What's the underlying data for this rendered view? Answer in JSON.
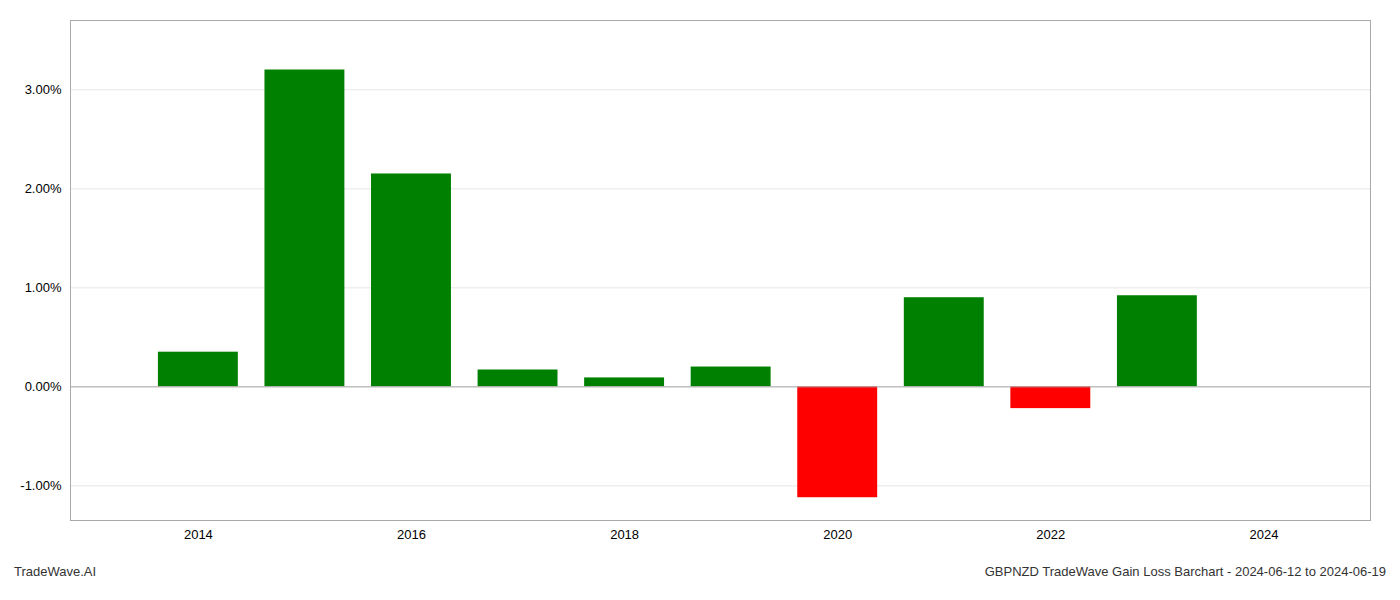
{
  "chart_data": {
    "type": "bar",
    "x": [
      2014,
      2015,
      2016,
      2017,
      2018,
      2019,
      2020,
      2021,
      2022,
      2023
    ],
    "values": [
      0.35,
      3.2,
      2.15,
      0.17,
      0.09,
      0.2,
      -1.12,
      0.9,
      -0.22,
      0.92
    ],
    "colors": [
      "#008000",
      "#008000",
      "#008000",
      "#008000",
      "#008000",
      "#008000",
      "#ff0000",
      "#008000",
      "#ff0000",
      "#008000"
    ],
    "xlim": [
      2012.8,
      2025.0
    ],
    "xticks": [
      2014,
      2016,
      2018,
      2020,
      2022,
      2024
    ],
    "ylim": [
      -1.35,
      3.7
    ],
    "yticks": [
      {
        "value": -1.0,
        "label": "-1.00%"
      },
      {
        "value": 0.0,
        "label": "0.00%"
      },
      {
        "value": 1.0,
        "label": "1.00%"
      },
      {
        "value": 2.0,
        "label": "2.00%"
      },
      {
        "value": 3.0,
        "label": "3.00%"
      }
    ],
    "grid": true,
    "annotations": [
      "TradeWave.AI",
      "GBPNZD TradeWave Gain Loss Barchart - 2024-06-12 to 2024-06-19"
    ]
  }
}
